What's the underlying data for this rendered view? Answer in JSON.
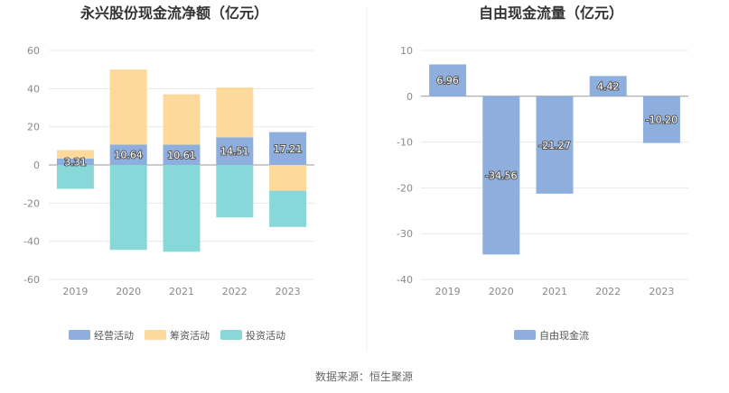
{
  "source_text": "数据来源：恒生聚源",
  "chart_data": [
    {
      "type": "bar",
      "stacked": true,
      "title": "永兴股份现金流净额（亿元）",
      "categories": [
        "2019",
        "2020",
        "2021",
        "2022",
        "2023"
      ],
      "ylim": [
        -60,
        60
      ],
      "yticks": [
        60,
        40,
        20,
        0,
        -20,
        -40,
        -60
      ],
      "grid": true,
      "legend_position": "bottom",
      "series": [
        {
          "name": "经营活动",
          "color": "#8eaedd",
          "values": [
            3.31,
            10.64,
            10.61,
            14.51,
            17.21
          ]
        },
        {
          "name": "筹资活动",
          "color": "#fdd99b",
          "values": [
            4.5,
            39.4,
            26.4,
            26.1,
            -13.5
          ]
        },
        {
          "name": "投资活动",
          "color": "#88d8da",
          "values": [
            -12.5,
            -44.5,
            -45.5,
            -27.5,
            -19.0
          ]
        }
      ],
      "data_labels": [
        3.31,
        10.64,
        10.61,
        14.51,
        17.21
      ],
      "data_label_series": "经营活动"
    },
    {
      "type": "bar",
      "title": "自由现金流量（亿元）",
      "categories": [
        "2019",
        "2020",
        "2021",
        "2022",
        "2023"
      ],
      "ylim": [
        -40,
        10
      ],
      "yticks": [
        10,
        0,
        -10,
        -20,
        -30,
        -40
      ],
      "grid": true,
      "legend_position": "bottom",
      "series": [
        {
          "name": "自由现金流",
          "color": "#8eaedd",
          "values": [
            6.96,
            -34.56,
            -21.27,
            4.42,
            -10.2
          ]
        }
      ],
      "data_labels": [
        "6.96",
        "-34.56",
        "-21.27",
        "4.42",
        "-10.20"
      ]
    }
  ]
}
